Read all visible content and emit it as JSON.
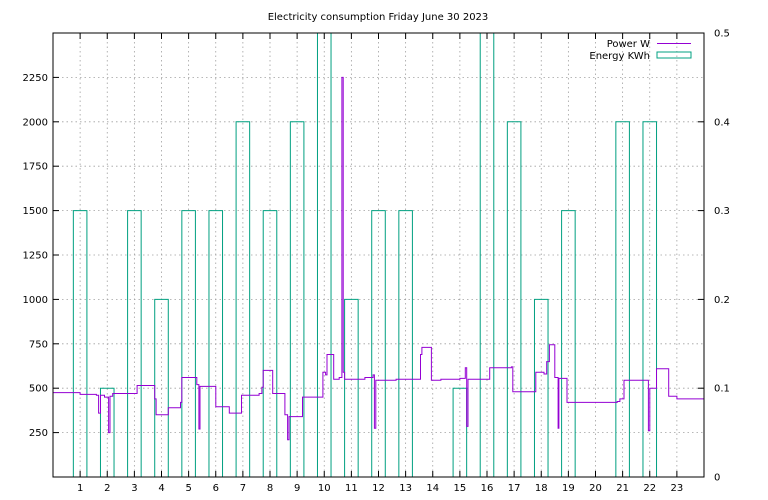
{
  "chart_data": {
    "type": "line",
    "title": "Electricity consumption Friday June 30 2023",
    "grid": true,
    "legend_position": "top-right",
    "x": {
      "range": [
        0,
        24
      ],
      "ticks": [
        1,
        2,
        3,
        4,
        5,
        6,
        7,
        8,
        9,
        10,
        11,
        12,
        13,
        14,
        15,
        16,
        17,
        18,
        19,
        20,
        21,
        22,
        23
      ],
      "tick_labels": [
        "1",
        "2",
        "3",
        "4",
        "5",
        "6",
        "7",
        "8",
        "9",
        "10",
        "11",
        "12",
        "13",
        "14",
        "15",
        "16",
        "17",
        "18",
        "19",
        "20",
        "21",
        "22",
        "23"
      ]
    },
    "y_left": {
      "range": [
        0,
        2500
      ],
      "ticks": [
        250,
        500,
        750,
        1000,
        1250,
        1500,
        1750,
        2000,
        2250
      ],
      "tick_labels": [
        "250",
        "500",
        "750",
        "1000",
        "1250",
        "1500",
        "1750",
        "2000",
        "2250"
      ]
    },
    "y_right": {
      "range": [
        0,
        0.5
      ],
      "ticks": [
        0,
        0.1,
        0.2,
        0.3,
        0.4,
        0.5
      ],
      "tick_labels": [
        "0",
        "0.1",
        "0.2",
        "0.3",
        "0.4",
        "0.5"
      ]
    },
    "series": [
      {
        "name": "Power W",
        "axis": "left",
        "color": "#9400d3",
        "style": "steps",
        "points": [
          [
            0.0,
            475
          ],
          [
            1.0,
            465
          ],
          [
            1.6,
            460
          ],
          [
            1.68,
            360
          ],
          [
            1.75,
            460
          ],
          [
            1.9,
            450
          ],
          [
            2.05,
            250
          ],
          [
            2.1,
            455
          ],
          [
            2.2,
            470
          ],
          [
            2.9,
            470
          ],
          [
            3.1,
            515
          ],
          [
            3.7,
            515
          ],
          [
            3.75,
            440
          ],
          [
            3.8,
            350
          ],
          [
            4.25,
            390
          ],
          [
            4.7,
            420
          ],
          [
            4.75,
            560
          ],
          [
            5.3,
            520
          ],
          [
            5.38,
            270
          ],
          [
            5.42,
            510
          ],
          [
            6.0,
            395
          ],
          [
            6.5,
            360
          ],
          [
            6.95,
            460
          ],
          [
            7.6,
            470
          ],
          [
            7.7,
            505
          ],
          [
            7.75,
            600
          ],
          [
            8.1,
            470
          ],
          [
            8.55,
            350
          ],
          [
            8.65,
            210
          ],
          [
            8.7,
            340
          ],
          [
            8.85,
            340
          ],
          [
            9.2,
            450
          ],
          [
            9.9,
            450
          ],
          [
            9.95,
            590
          ],
          [
            10.05,
            575
          ],
          [
            10.1,
            690
          ],
          [
            10.35,
            550
          ],
          [
            10.55,
            560
          ],
          [
            10.65,
            2250
          ],
          [
            10.7,
            590
          ],
          [
            10.75,
            550
          ],
          [
            11.5,
            560
          ],
          [
            11.8,
            575
          ],
          [
            11.85,
            275
          ],
          [
            11.9,
            545
          ],
          [
            12.65,
            550
          ],
          [
            13.5,
            550
          ],
          [
            13.55,
            690
          ],
          [
            13.6,
            730
          ],
          [
            13.95,
            545
          ],
          [
            14.3,
            550
          ],
          [
            15.0,
            555
          ],
          [
            15.2,
            615
          ],
          [
            15.25,
            285
          ],
          [
            15.3,
            550
          ],
          [
            15.6,
            550
          ],
          [
            16.1,
            615
          ],
          [
            16.9,
            620
          ],
          [
            16.95,
            480
          ],
          [
            17.75,
            480
          ],
          [
            17.8,
            590
          ],
          [
            18.1,
            580
          ],
          [
            18.2,
            650
          ],
          [
            18.3,
            745
          ],
          [
            18.5,
            560
          ],
          [
            18.62,
            275
          ],
          [
            18.65,
            555
          ],
          [
            18.95,
            420
          ],
          [
            19.5,
            420
          ],
          [
            20.8,
            425
          ],
          [
            20.9,
            440
          ],
          [
            21.05,
            545
          ],
          [
            21.9,
            545
          ],
          [
            21.95,
            260
          ],
          [
            22.0,
            500
          ],
          [
            22.25,
            610
          ],
          [
            22.7,
            455
          ],
          [
            23.0,
            440
          ],
          [
            24.0,
            440
          ]
        ]
      },
      {
        "name": "Energy KWh",
        "axis": "right",
        "color": "#00a080",
        "style": "impulse-bars",
        "bars": [
          {
            "hour": 1,
            "value": 0.3
          },
          {
            "hour": 2,
            "value": 0.1
          },
          {
            "hour": 3,
            "value": 0.3
          },
          {
            "hour": 4,
            "value": 0.2
          },
          {
            "hour": 5,
            "value": 0.3
          },
          {
            "hour": 6,
            "value": 0.3
          },
          {
            "hour": 7,
            "value": 0.4
          },
          {
            "hour": 8,
            "value": 0.3
          },
          {
            "hour": 9,
            "value": 0.4
          },
          {
            "hour": 10,
            "value": 0.5
          },
          {
            "hour": 11,
            "value": 0.2
          },
          {
            "hour": 12,
            "value": 0.3
          },
          {
            "hour": 13,
            "value": 0.3
          },
          {
            "hour": 15,
            "value": 0.1
          },
          {
            "hour": 16,
            "value": 0.5
          },
          {
            "hour": 17,
            "value": 0.4
          },
          {
            "hour": 18,
            "value": 0.2
          },
          {
            "hour": 19,
            "value": 0.3
          },
          {
            "hour": 21,
            "value": 0.4
          },
          {
            "hour": 22,
            "value": 0.4
          }
        ]
      }
    ]
  }
}
